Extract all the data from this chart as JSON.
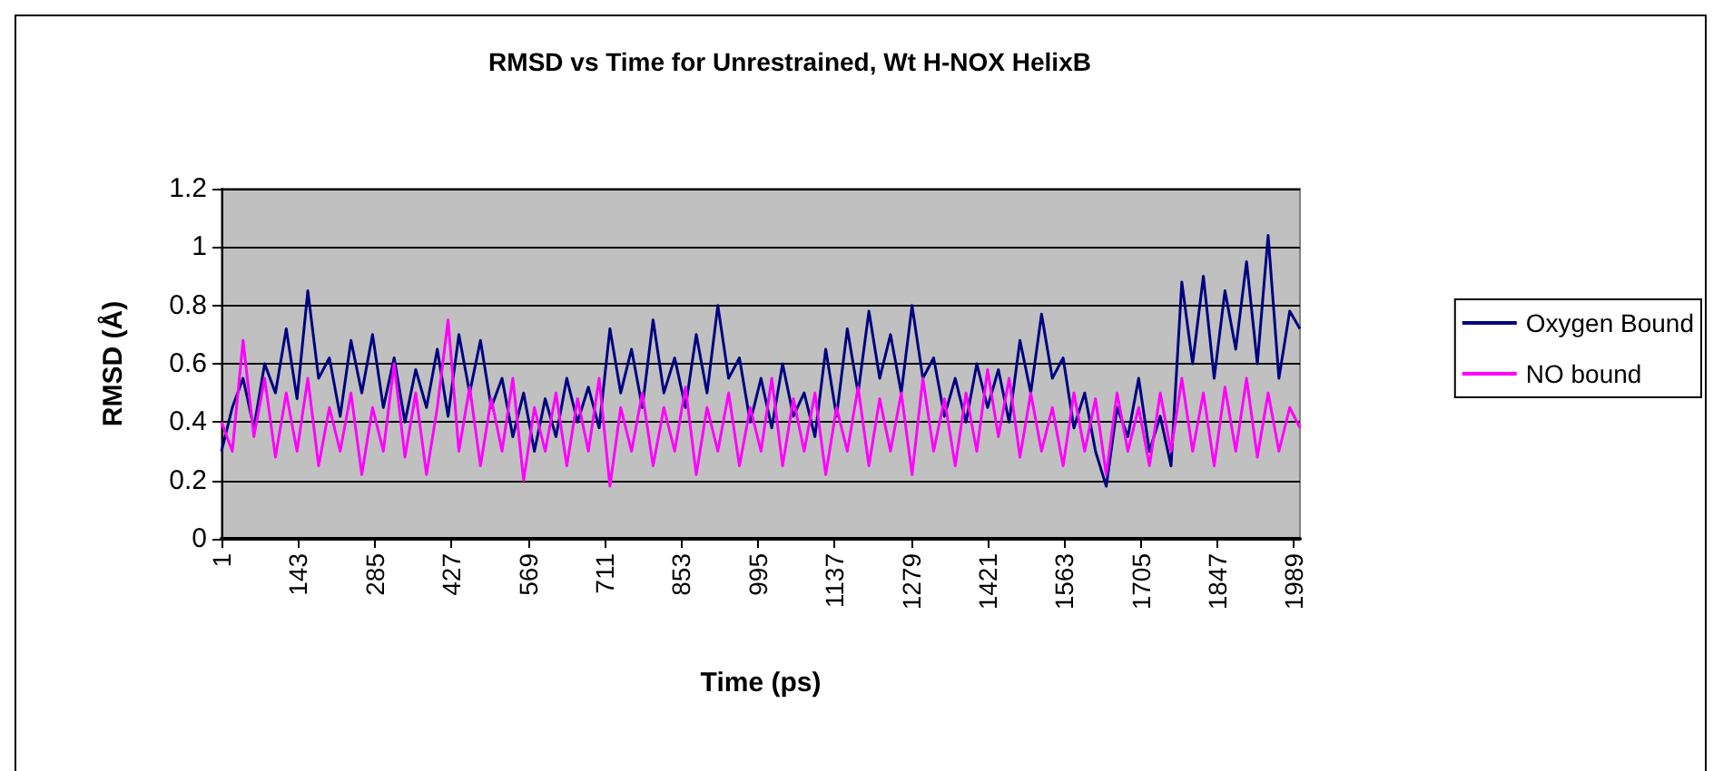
{
  "chart_data": {
    "type": "line",
    "title": "RMSD vs Time for Unrestrained, Wt H-NOX HelixB",
    "xlabel": "Time (ps)",
    "ylabel": "RMSD (Å)",
    "x": [
      1,
      21,
      41,
      61,
      81,
      101,
      121,
      141,
      161,
      181,
      201,
      221,
      241,
      261,
      281,
      301,
      321,
      341,
      361,
      381,
      401,
      421,
      441,
      461,
      481,
      501,
      521,
      541,
      561,
      581,
      601,
      621,
      641,
      661,
      681,
      701,
      721,
      741,
      761,
      781,
      801,
      821,
      841,
      861,
      881,
      901,
      921,
      941,
      961,
      981,
      1001,
      1021,
      1041,
      1061,
      1081,
      1101,
      1121,
      1141,
      1161,
      1181,
      1201,
      1221,
      1241,
      1261,
      1281,
      1301,
      1321,
      1341,
      1361,
      1381,
      1401,
      1421,
      1441,
      1461,
      1481,
      1501,
      1521,
      1541,
      1561,
      1581,
      1601,
      1621,
      1641,
      1661,
      1681,
      1701,
      1721,
      1741,
      1761,
      1781,
      1801,
      1821,
      1841,
      1861,
      1881,
      1901,
      1921,
      1941,
      1961,
      1981,
      2000
    ],
    "series": [
      {
        "name": "Oxygen Bound",
        "color": "#000080",
        "values": [
          0.3,
          0.45,
          0.55,
          0.38,
          0.6,
          0.5,
          0.72,
          0.48,
          0.85,
          0.55,
          0.62,
          0.42,
          0.68,
          0.5,
          0.7,
          0.45,
          0.62,
          0.4,
          0.58,
          0.45,
          0.65,
          0.42,
          0.7,
          0.5,
          0.68,
          0.45,
          0.55,
          0.35,
          0.5,
          0.3,
          0.48,
          0.35,
          0.55,
          0.4,
          0.52,
          0.38,
          0.72,
          0.5,
          0.65,
          0.45,
          0.75,
          0.5,
          0.62,
          0.45,
          0.7,
          0.5,
          0.8,
          0.55,
          0.62,
          0.4,
          0.55,
          0.38,
          0.6,
          0.42,
          0.5,
          0.35,
          0.65,
          0.42,
          0.72,
          0.5,
          0.78,
          0.55,
          0.7,
          0.5,
          0.8,
          0.55,
          0.62,
          0.42,
          0.55,
          0.4,
          0.6,
          0.45,
          0.58,
          0.4,
          0.68,
          0.5,
          0.77,
          0.55,
          0.62,
          0.38,
          0.5,
          0.3,
          0.18,
          0.45,
          0.35,
          0.55,
          0.3,
          0.42,
          0.25,
          0.88,
          0.6,
          0.9,
          0.55,
          0.85,
          0.65,
          0.95,
          0.6,
          1.04,
          0.55,
          0.78,
          0.72
        ]
      },
      {
        "name": "NO bound",
        "color": "#ff00ff",
        "values": [
          0.4,
          0.3,
          0.68,
          0.35,
          0.55,
          0.28,
          0.5,
          0.3,
          0.55,
          0.25,
          0.45,
          0.3,
          0.5,
          0.22,
          0.45,
          0.3,
          0.6,
          0.28,
          0.5,
          0.22,
          0.45,
          0.75,
          0.3,
          0.52,
          0.25,
          0.48,
          0.3,
          0.55,
          0.2,
          0.45,
          0.3,
          0.5,
          0.25,
          0.48,
          0.3,
          0.55,
          0.18,
          0.45,
          0.3,
          0.5,
          0.25,
          0.45,
          0.3,
          0.52,
          0.22,
          0.45,
          0.3,
          0.5,
          0.25,
          0.45,
          0.3,
          0.55,
          0.25,
          0.48,
          0.3,
          0.5,
          0.22,
          0.45,
          0.3,
          0.52,
          0.25,
          0.48,
          0.3,
          0.5,
          0.22,
          0.55,
          0.3,
          0.48,
          0.25,
          0.5,
          0.3,
          0.58,
          0.35,
          0.55,
          0.28,
          0.5,
          0.3,
          0.45,
          0.25,
          0.5,
          0.3,
          0.48,
          0.22,
          0.5,
          0.3,
          0.45,
          0.25,
          0.5,
          0.3,
          0.55,
          0.3,
          0.5,
          0.25,
          0.52,
          0.3,
          0.55,
          0.28,
          0.5,
          0.3,
          0.45,
          0.38
        ]
      }
    ],
    "xlim": [
      1,
      2000
    ],
    "xticks": [
      1,
      143,
      285,
      427,
      569,
      711,
      853,
      995,
      1137,
      1279,
      1421,
      1563,
      1705,
      1847,
      1989
    ],
    "ylim": [
      0,
      1.2
    ],
    "yticks": [
      0,
      0.2,
      0.4,
      0.6,
      0.8,
      1,
      1.2
    ],
    "grid": "y",
    "legend": "right",
    "marker": "none",
    "line_style": "solid"
  }
}
